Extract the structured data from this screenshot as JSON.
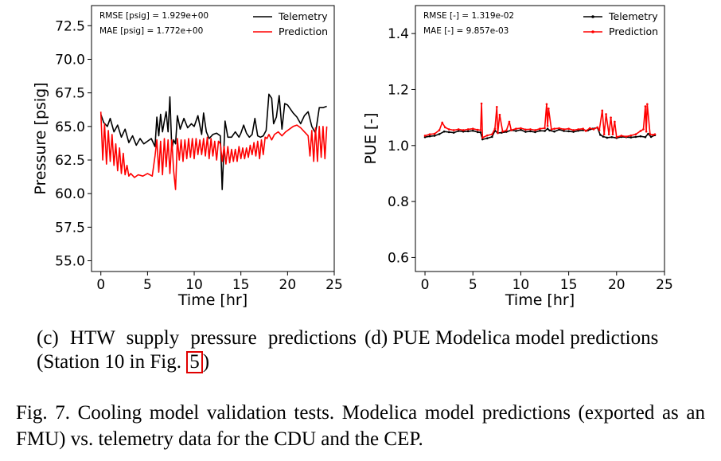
{
  "chart_data": [
    {
      "type": "line",
      "id": "c",
      "xlabel": "Time [hr]",
      "ylabel": "Pressure [psig]",
      "xlim": [
        -1,
        25
      ],
      "ylim": [
        54.2,
        74.0
      ],
      "xticks": [
        "0",
        "5",
        "10",
        "15",
        "20",
        "25"
      ],
      "yticks": [
        "55.0",
        "57.5",
        "60.0",
        "62.5",
        "65.0",
        "67.5",
        "70.0",
        "72.5"
      ],
      "annotations": [
        "RMSE [psig] = 1.929e+00",
        "MAE [psig] = 1.772e+00"
      ],
      "legend": {
        "placement": "top-right",
        "entries": [
          "Telemetry",
          "Prediction"
        ]
      },
      "series": [
        {
          "name": "Telemetry",
          "color": "#000000",
          "x": [
            0,
            0.3,
            0.7,
            1,
            1.4,
            1.8,
            2.2,
            2.6,
            3,
            3.4,
            3.8,
            4.2,
            4.6,
            5,
            5.4,
            5.8,
            6,
            6.2,
            6.4,
            6.6,
            6.8,
            7,
            7.2,
            7.4,
            7.6,
            7.8,
            8,
            8.2,
            8.5,
            8.9,
            9.3,
            9.7,
            10,
            10.4,
            10.8,
            11,
            11.3,
            11.6,
            12,
            12.4,
            12.8,
            13,
            13.3,
            13.6,
            14,
            14.4,
            14.8,
            15,
            15.3,
            15.6,
            15.9,
            16.2,
            16.5,
            16.8,
            17.1,
            17.4,
            17.7,
            18,
            18.3,
            18.5,
            18.8,
            19.1,
            19.4,
            19.7,
            20,
            20.3,
            20.6,
            21,
            21.4,
            21.8,
            22.2,
            22.6,
            23,
            23.4,
            23.8,
            24.2
          ],
          "y": [
            65.9,
            65.3,
            65.0,
            65.6,
            64.6,
            65.1,
            64.2,
            64.8,
            63.8,
            64.3,
            63.6,
            64.1,
            63.7,
            63.9,
            64.1,
            63.5,
            65.7,
            64.3,
            65.9,
            64.6,
            65.4,
            66.1,
            64.6,
            67.2,
            63.3,
            64.0,
            63.7,
            65.8,
            64.8,
            65.6,
            64.9,
            65.2,
            65.0,
            65.8,
            64.4,
            66.0,
            64.6,
            64.1,
            64.4,
            64.5,
            64.3,
            60.3,
            65.4,
            64.2,
            64.2,
            64.6,
            64.2,
            64.5,
            65.1,
            64.5,
            64.2,
            64.4,
            65.6,
            64.3,
            64.2,
            64.3,
            64.7,
            67.4,
            67.1,
            65.2,
            65.7,
            67.3,
            64.8,
            66.7,
            66.6,
            66.3,
            66.0,
            65.7,
            65.2,
            65.8,
            66.1,
            65.0,
            64.5,
            66.4,
            66.4,
            66.5
          ]
        },
        {
          "name": "Prediction",
          "color": "#ff0000",
          "x": [
            0,
            0.2,
            0.4,
            0.6,
            0.8,
            1,
            1.2,
            1.4,
            1.6,
            1.8,
            2,
            2.2,
            2.4,
            2.6,
            2.8,
            3,
            3.2,
            3.6,
            4,
            4.5,
            5,
            5.5,
            5.8,
            6,
            6.2,
            6.4,
            6.6,
            6.8,
            7,
            7.2,
            7.4,
            7.6,
            7.8,
            8,
            8.2,
            8.4,
            8.6,
            8.8,
            9,
            9.2,
            9.4,
            9.6,
            9.8,
            10,
            10.2,
            10.4,
            10.6,
            10.8,
            11,
            11.2,
            11.4,
            11.6,
            11.8,
            12,
            12.2,
            12.4,
            12.6,
            12.8,
            13,
            13.2,
            13.4,
            13.6,
            13.8,
            14,
            14.2,
            14.4,
            14.6,
            14.8,
            15,
            15.2,
            15.4,
            15.6,
            15.8,
            16,
            16.2,
            16.4,
            16.6,
            16.8,
            17,
            17.2,
            17.4,
            17.6,
            17.8,
            18,
            18.3,
            18.6,
            19,
            19.4,
            19.8,
            20.2,
            20.6,
            21,
            21.4,
            21.8,
            22.2,
            22.4,
            22.6,
            22.8,
            23,
            23.2,
            23.4,
            23.6,
            23.8,
            24,
            24.2
          ],
          "y": [
            66.1,
            62.5,
            65.2,
            62.2,
            64.7,
            62.4,
            64.4,
            62.1,
            63.7,
            61.7,
            63.4,
            61.5,
            63.0,
            61.4,
            62.1,
            61.3,
            61.5,
            61.2,
            61.4,
            61.3,
            61.5,
            61.3,
            62.8,
            64.0,
            61.6,
            63.9,
            61.4,
            64.1,
            62.0,
            64.0,
            61.5,
            64.0,
            61.7,
            60.3,
            64.1,
            62.5,
            64.0,
            62.4,
            64.0,
            62.6,
            64.1,
            62.7,
            64.1,
            62.6,
            64.1,
            62.9,
            64.0,
            62.9,
            64.1,
            62.8,
            64.2,
            62.6,
            64.1,
            62.8,
            63.9,
            62.5,
            63.9,
            63.7,
            62.4,
            63.5,
            62.2,
            63.5,
            62.3,
            63.3,
            62.4,
            63.3,
            62.4,
            63.5,
            62.6,
            63.4,
            62.6,
            63.4,
            62.7,
            63.6,
            62.9,
            63.8,
            62.8,
            63.9,
            62.6,
            64.0,
            62.9,
            64.2,
            64.1,
            64.4,
            64.0,
            64.4,
            64.6,
            64.3,
            64.6,
            64.8,
            65.0,
            65.1,
            64.9,
            64.6,
            64.3,
            62.8,
            64.7,
            62.4,
            64.9,
            62.4,
            65.0,
            62.7,
            65.0,
            62.6,
            65.0
          ]
        }
      ]
    },
    {
      "type": "line",
      "id": "d",
      "xlabel": "Time [hr]",
      "ylabel": "PUE [-]",
      "xlim": [
        -1,
        25
      ],
      "ylim": [
        0.55,
        1.5
      ],
      "xticks": [
        "0",
        "5",
        "10",
        "15",
        "20",
        "25"
      ],
      "yticks": [
        "0.6",
        "0.8",
        "1.0",
        "1.2",
        "1.4"
      ],
      "annotations": [
        "RMSE [-] = 1.319e-02",
        "MAE [-] = 9.857e-03"
      ],
      "legend": {
        "placement": "top-right",
        "entries": [
          "Telemetry",
          "Prediction"
        ]
      },
      "series": [
        {
          "name": "Telemetry",
          "color": "#000000",
          "marker": true,
          "x": [
            0,
            0.5,
            1,
            1.5,
            2,
            2.5,
            3,
            3.5,
            4,
            4.5,
            5,
            5.5,
            5.8,
            6,
            6.5,
            7,
            7.3,
            7.6,
            8,
            8.5,
            9,
            9.5,
            10,
            10.5,
            11,
            11.5,
            12,
            12.5,
            12.8,
            13,
            13.5,
            14,
            14.5,
            15,
            15.5,
            16,
            16.5,
            17,
            17.5,
            18,
            18.3,
            18.6,
            19,
            19.5,
            20,
            20.5,
            21,
            21.5,
            22,
            22.5,
            23,
            23.3,
            23.6,
            24
          ],
          "y": [
            1.03,
            1.033,
            1.035,
            1.041,
            1.05,
            1.048,
            1.046,
            1.052,
            1.05,
            1.051,
            1.053,
            1.048,
            1.047,
            1.022,
            1.026,
            1.031,
            1.053,
            1.045,
            1.046,
            1.049,
            1.055,
            1.052,
            1.056,
            1.049,
            1.051,
            1.048,
            1.053,
            1.052,
            1.06,
            1.054,
            1.05,
            1.057,
            1.052,
            1.051,
            1.049,
            1.053,
            1.055,
            1.054,
            1.06,
            1.064,
            1.038,
            1.032,
            1.028,
            1.03,
            1.027,
            1.031,
            1.03,
            1.029,
            1.031,
            1.033,
            1.03,
            1.042,
            1.031,
            1.037
          ]
        },
        {
          "name": "Prediction",
          "color": "#ff0000",
          "marker": true,
          "x": [
            0,
            0.5,
            1,
            1.5,
            1.8,
            2.1,
            2.5,
            3,
            3.5,
            4,
            4.5,
            5,
            5.5,
            5.8,
            5.9,
            6,
            6.5,
            7,
            7.3,
            7.5,
            7.6,
            7.8,
            8.1,
            8.5,
            8.8,
            9,
            9.5,
            10,
            10.5,
            11,
            11.5,
            12,
            12.5,
            12.7,
            12.8,
            12.9,
            13.2,
            13.5,
            14,
            14.5,
            15,
            15.5,
            16,
            16.5,
            16.8,
            17.2,
            17.6,
            18,
            18.2,
            18.5,
            18.7,
            18.9,
            19.2,
            19.4,
            19.6,
            19.8,
            20,
            20.5,
            21,
            21.5,
            22,
            22.5,
            22.8,
            23,
            23.1,
            23.2,
            23.5,
            23.8,
            24
          ],
          "y": [
            1.035,
            1.04,
            1.042,
            1.055,
            1.082,
            1.065,
            1.058,
            1.055,
            1.058,
            1.055,
            1.058,
            1.06,
            1.056,
            1.055,
            1.15,
            1.028,
            1.036,
            1.04,
            1.06,
            1.138,
            1.045,
            1.11,
            1.05,
            1.054,
            1.085,
            1.055,
            1.06,
            1.062,
            1.057,
            1.058,
            1.055,
            1.06,
            1.062,
            1.148,
            1.07,
            1.132,
            1.058,
            1.06,
            1.062,
            1.058,
            1.06,
            1.055,
            1.058,
            1.06,
            1.052,
            1.062,
            1.058,
            1.065,
            1.055,
            1.125,
            1.04,
            1.112,
            1.04,
            1.1,
            1.04,
            1.085,
            1.03,
            1.035,
            1.032,
            1.036,
            1.04,
            1.052,
            1.058,
            1.14,
            1.05,
            1.148,
            1.04,
            1.038,
            1.04
          ]
        }
      ]
    }
  ],
  "captions": {
    "c": {
      "text": "(c) HTW supply pressure predictions (Station 10 in Fig. ",
      "ref": "5",
      "after": ")"
    },
    "d": {
      "text": "(d) PUE Modelica model predictions"
    },
    "figure": "Fig. 7.  Cooling model validation tests. Modelica model predictions (exported as an FMU) vs. telemetry data for the CDU and the CEP."
  }
}
